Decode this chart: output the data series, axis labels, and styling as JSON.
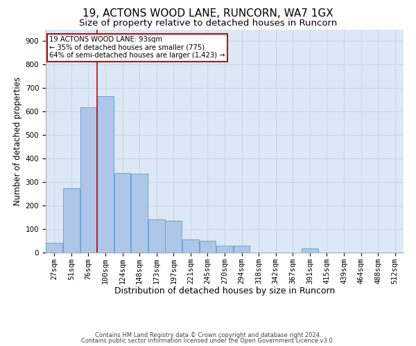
{
  "title1": "19, ACTONS WOOD LANE, RUNCORN, WA7 1GX",
  "title2": "Size of property relative to detached houses in Runcorn",
  "xlabel": "Distribution of detached houses by size in Runcorn",
  "ylabel": "Number of detached properties",
  "footer1": "Contains HM Land Registry data © Crown copyright and database right 2024.",
  "footer2": "Contains public sector information licensed under the Open Government Licence v3.0.",
  "bin_labels": [
    "27sqm",
    "51sqm",
    "76sqm",
    "100sqm",
    "124sqm",
    "148sqm",
    "173sqm",
    "197sqm",
    "221sqm",
    "245sqm",
    "270sqm",
    "294sqm",
    "318sqm",
    "342sqm",
    "367sqm",
    "391sqm",
    "415sqm",
    "439sqm",
    "464sqm",
    "488sqm",
    "512sqm"
  ],
  "bar_values": [
    42,
    275,
    620,
    665,
    340,
    335,
    140,
    135,
    55,
    50,
    30,
    30,
    0,
    0,
    0,
    18,
    0,
    0,
    0,
    0,
    0
  ],
  "bar_color": "#aec7e8",
  "bar_edge_color": "#5b9bd5",
  "vline_x": 2.5,
  "vline_color": "#cc0000",
  "annotation_text": "19 ACTONS WOOD LANE: 93sqm\n← 35% of detached houses are smaller (775)\n64% of semi-detached houses are larger (1,423) →",
  "annotation_box_color": "white",
  "annotation_box_edge_color": "#cc0000",
  "ylim": [
    0,
    950
  ],
  "yticks": [
    0,
    100,
    200,
    300,
    400,
    500,
    600,
    700,
    800,
    900
  ],
  "grid_color": "#c8d8e8",
  "bg_color": "#dce8f5",
  "title1_fontsize": 11,
  "title2_fontsize": 9.5,
  "xlabel_fontsize": 9,
  "ylabel_fontsize": 8.5,
  "tick_fontsize": 7.5,
  "footer_fontsize": 6
}
